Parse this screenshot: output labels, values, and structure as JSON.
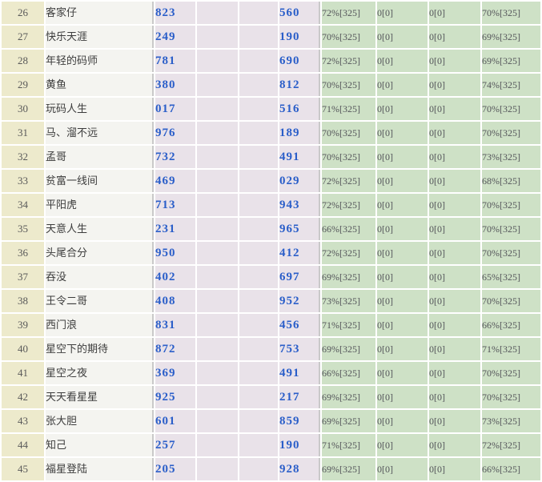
{
  "colors": {
    "rank-bg": "#edeacc",
    "name-bg": "#f4f4f0",
    "num-bg": "#e9e2e9",
    "stat-bg": "#cee1c6",
    "num-text": "#2a5ec9",
    "grid": "#ffffff",
    "section-line": "#c9c9c9",
    "rank-text": "#595959",
    "name-text": "#3c3c3c",
    "stat-text": "#54555a"
  },
  "table": {
    "columns": [
      {
        "key": "rank",
        "class": "col-rank",
        "cell_name": "rank-cell"
      },
      {
        "key": "name",
        "class": "col-name",
        "cell_name": "player-name-cell"
      },
      {
        "key": "num1",
        "class": "col-num",
        "cell_name": "number-cell-1"
      },
      {
        "key": "blank1",
        "class": "col-blank",
        "cell_name": "blank-cell-1"
      },
      {
        "key": "blank2",
        "class": "col-blank",
        "cell_name": "blank-cell-2"
      },
      {
        "key": "num2",
        "class": "col-num num-sep",
        "cell_name": "number-cell-2"
      },
      {
        "key": "stat1",
        "class": "col-stat",
        "cell_name": "stat-cell-1"
      },
      {
        "key": "stat2",
        "class": "col-stat",
        "cell_name": "stat-cell-2"
      },
      {
        "key": "stat3",
        "class": "col-stat",
        "cell_name": "stat-cell-3"
      },
      {
        "key": "stat4",
        "class": "col-stat",
        "cell_name": "stat-cell-4"
      }
    ],
    "rows": [
      {
        "rank": "26",
        "name": "客家仔",
        "num1": "823",
        "blank1": "",
        "blank2": "",
        "num2": "560",
        "stat1": "72%[325]",
        "stat2": "0[0]",
        "stat3": "0[0]",
        "stat4": "70%[325]"
      },
      {
        "rank": "27",
        "name": "快乐天涯",
        "num1": "249",
        "blank1": "",
        "blank2": "",
        "num2": "190",
        "stat1": "70%[325]",
        "stat2": "0[0]",
        "stat3": "0[0]",
        "stat4": "69%[325]"
      },
      {
        "rank": "28",
        "name": "年轻的码师",
        "num1": "781",
        "blank1": "",
        "blank2": "",
        "num2": "690",
        "stat1": "72%[325]",
        "stat2": "0[0]",
        "stat3": "0[0]",
        "stat4": "69%[325]"
      },
      {
        "rank": "29",
        "name": "黄鱼",
        "num1": "380",
        "blank1": "",
        "blank2": "",
        "num2": "812",
        "stat1": "70%[325]",
        "stat2": "0[0]",
        "stat3": "0[0]",
        "stat4": "74%[325]"
      },
      {
        "rank": "30",
        "name": "玩码人生",
        "num1": "017",
        "blank1": "",
        "blank2": "",
        "num2": "516",
        "stat1": "71%[325]",
        "stat2": "0[0]",
        "stat3": "0[0]",
        "stat4": "70%[325]"
      },
      {
        "rank": "31",
        "name": "马、溜不远",
        "num1": "976",
        "blank1": "",
        "blank2": "",
        "num2": "189",
        "stat1": "70%[325]",
        "stat2": "0[0]",
        "stat3": "0[0]",
        "stat4": "70%[325]"
      },
      {
        "rank": "32",
        "name": "孟哥",
        "num1": "732",
        "blank1": "",
        "blank2": "",
        "num2": "491",
        "stat1": "70%[325]",
        "stat2": "0[0]",
        "stat3": "0[0]",
        "stat4": "73%[325]"
      },
      {
        "rank": "33",
        "name": "贫富一线间",
        "num1": "469",
        "blank1": "",
        "blank2": "",
        "num2": "029",
        "stat1": "72%[325]",
        "stat2": "0[0]",
        "stat3": "0[0]",
        "stat4": "68%[325]"
      },
      {
        "rank": "34",
        "name": "平阳虎",
        "num1": "713",
        "blank1": "",
        "blank2": "",
        "num2": "943",
        "stat1": "72%[325]",
        "stat2": "0[0]",
        "stat3": "0[0]",
        "stat4": "70%[325]"
      },
      {
        "rank": "35",
        "name": "天意人生",
        "num1": "231",
        "blank1": "",
        "blank2": "",
        "num2": "965",
        "stat1": "66%[325]",
        "stat2": "0[0]",
        "stat3": "0[0]",
        "stat4": "70%[325]"
      },
      {
        "rank": "36",
        "name": "头尾合分",
        "num1": "950",
        "blank1": "",
        "blank2": "",
        "num2": "412",
        "stat1": "72%[325]",
        "stat2": "0[0]",
        "stat3": "0[0]",
        "stat4": "70%[325]"
      },
      {
        "rank": "37",
        "name": "吞没",
        "num1": "402",
        "blank1": "",
        "blank2": "",
        "num2": "697",
        "stat1": "69%[325]",
        "stat2": "0[0]",
        "stat3": "0[0]",
        "stat4": "65%[325]"
      },
      {
        "rank": "38",
        "name": "王令二哥",
        "num1": "408",
        "blank1": "",
        "blank2": "",
        "num2": "952",
        "stat1": "73%[325]",
        "stat2": "0[0]",
        "stat3": "0[0]",
        "stat4": "70%[325]"
      },
      {
        "rank": "39",
        "name": "西门浪",
        "num1": "831",
        "blank1": "",
        "blank2": "",
        "num2": "456",
        "stat1": "71%[325]",
        "stat2": "0[0]",
        "stat3": "0[0]",
        "stat4": "66%[325]"
      },
      {
        "rank": "40",
        "name": "星空下的期待",
        "num1": "872",
        "blank1": "",
        "blank2": "",
        "num2": "753",
        "stat1": "69%[325]",
        "stat2": "0[0]",
        "stat3": "0[0]",
        "stat4": "71%[325]"
      },
      {
        "rank": "41",
        "name": "星空之夜",
        "num1": "369",
        "blank1": "",
        "blank2": "",
        "num2": "491",
        "stat1": "66%[325]",
        "stat2": "0[0]",
        "stat3": "0[0]",
        "stat4": "70%[325]"
      },
      {
        "rank": "42",
        "name": "天天看星星",
        "num1": "925",
        "blank1": "",
        "blank2": "",
        "num2": "217",
        "stat1": "69%[325]",
        "stat2": "0[0]",
        "stat3": "0[0]",
        "stat4": "70%[325]"
      },
      {
        "rank": "43",
        "name": "张大胆",
        "num1": "601",
        "blank1": "",
        "blank2": "",
        "num2": "859",
        "stat1": "69%[325]",
        "stat2": "0[0]",
        "stat3": "0[0]",
        "stat4": "73%[325]"
      },
      {
        "rank": "44",
        "name": "知己",
        "num1": "257",
        "blank1": "",
        "blank2": "",
        "num2": "190",
        "stat1": "71%[325]",
        "stat2": "0[0]",
        "stat3": "0[0]",
        "stat4": "72%[325]"
      },
      {
        "rank": "45",
        "name": "福星登陆",
        "num1": "205",
        "blank1": "",
        "blank2": "",
        "num2": "928",
        "stat1": "69%[325]",
        "stat2": "0[0]",
        "stat3": "0[0]",
        "stat4": "66%[325]"
      }
    ]
  }
}
